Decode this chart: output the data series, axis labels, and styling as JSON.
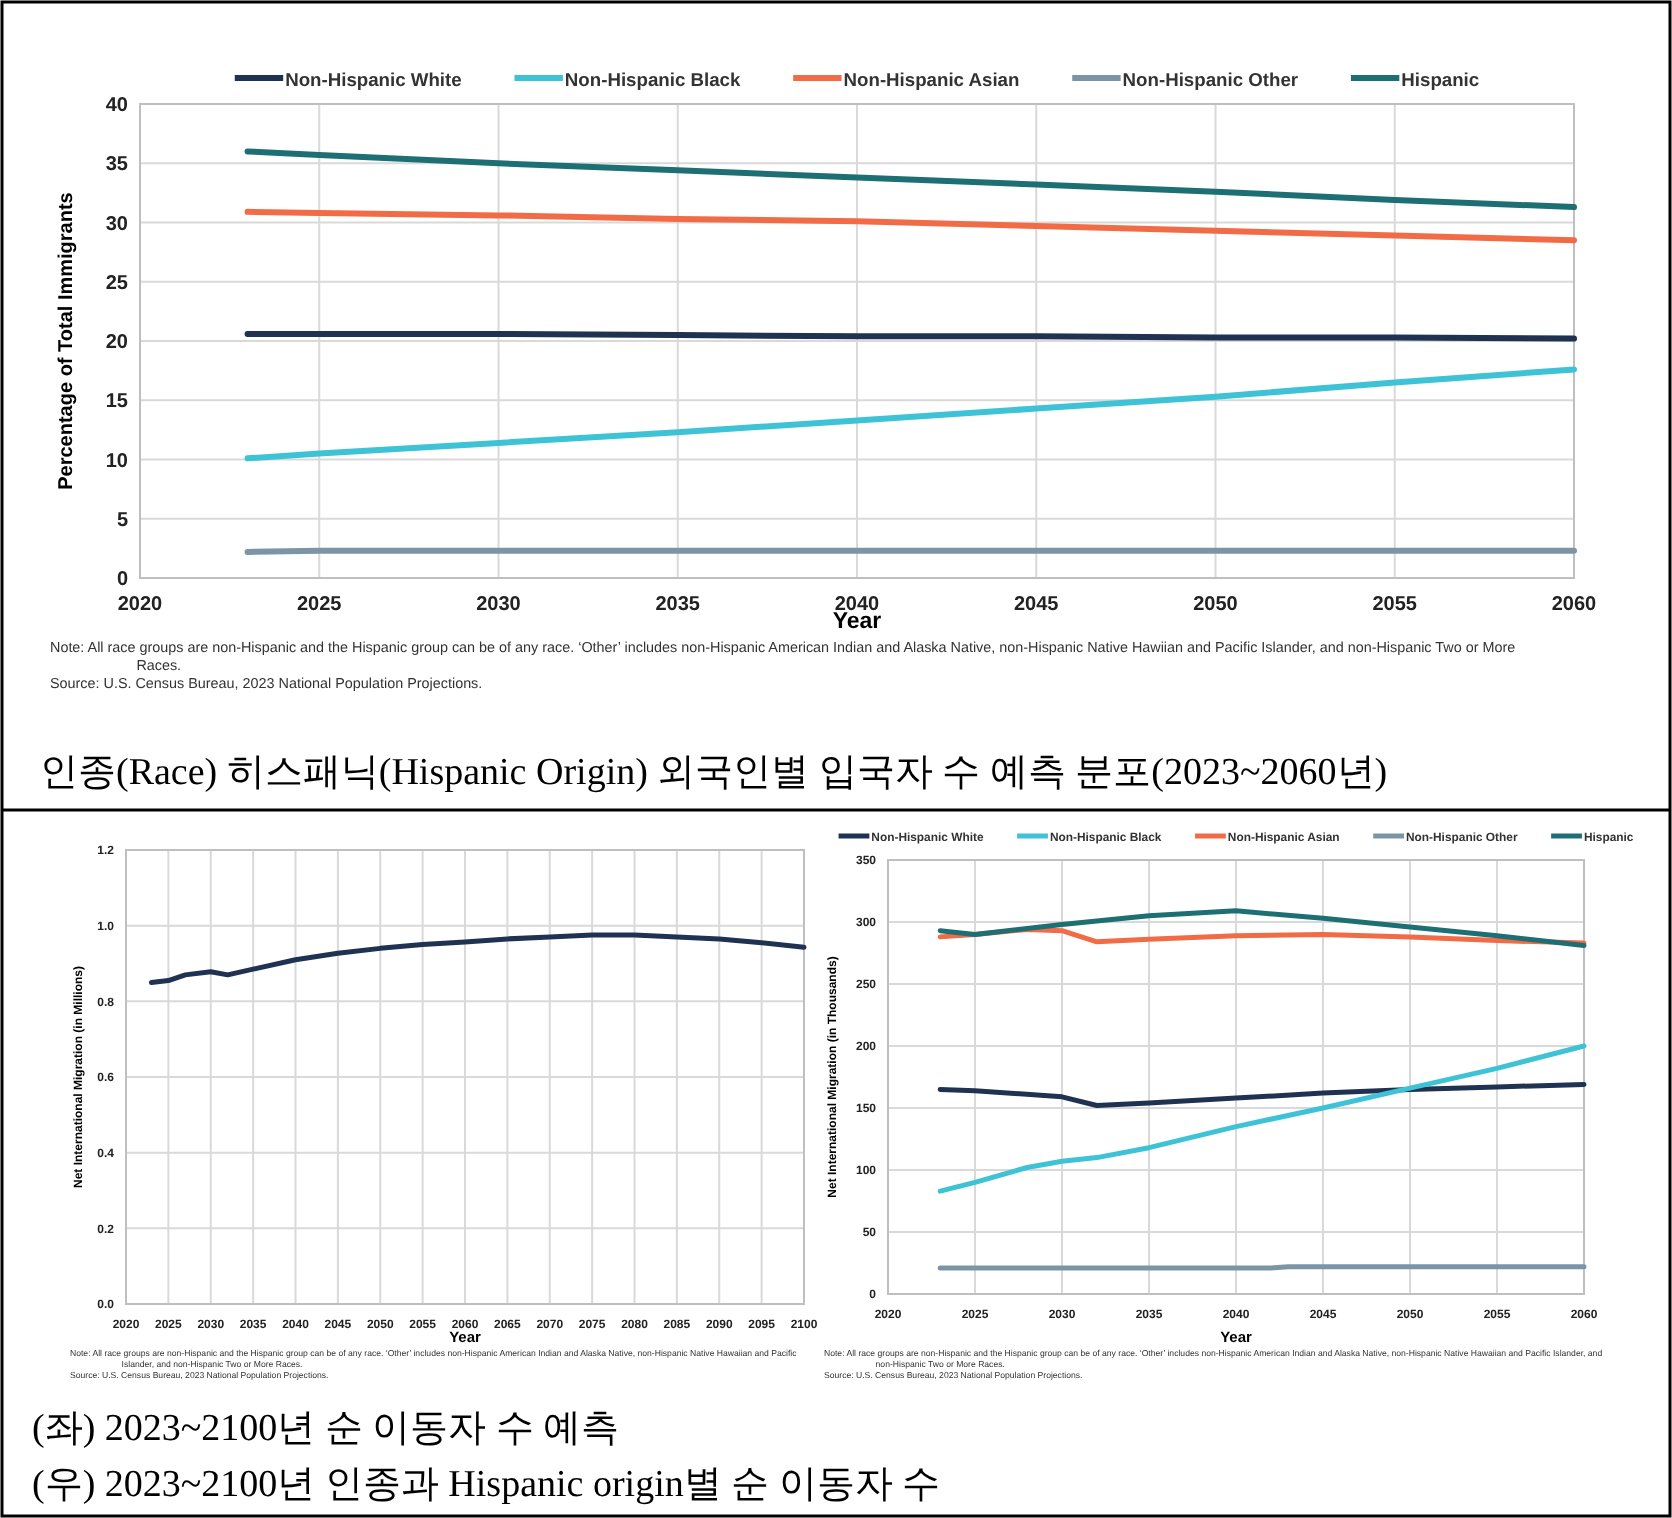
{
  "chart_data": [
    {
      "type": "line",
      "title": "인종(Race) 히스패닉(Hispanic Origin) 외국인별 입국자 수 예측 분포(2023~2060년)",
      "xlabel": "Year",
      "ylabel": "Percentage of Total Immigrants",
      "x": [
        2023,
        2025,
        2030,
        2035,
        2040,
        2045,
        2050,
        2055,
        2060
      ],
      "xlim": [
        2020,
        2060
      ],
      "xticks": [
        2020,
        2025,
        2030,
        2035,
        2040,
        2045,
        2050,
        2055,
        2060
      ],
      "ylim": [
        0,
        40
      ],
      "yticks": [
        0,
        5,
        10,
        15,
        20,
        25,
        30,
        35,
        40
      ],
      "grid": true,
      "legend": "top",
      "series": [
        {
          "name": "Non-Hispanic White",
          "color": "#1f3252",
          "values": [
            20.6,
            20.6,
            20.6,
            20.5,
            20.4,
            20.4,
            20.3,
            20.3,
            20.2
          ]
        },
        {
          "name": "Non-Hispanic Black",
          "color": "#3ec3d6",
          "values": [
            10.1,
            10.5,
            11.4,
            12.3,
            13.3,
            14.3,
            15.3,
            16.5,
            17.6
          ]
        },
        {
          "name": "Non-Hispanic Asian",
          "color": "#f26b47",
          "values": [
            30.9,
            30.8,
            30.6,
            30.3,
            30.1,
            29.7,
            29.3,
            28.9,
            28.5
          ]
        },
        {
          "name": "Non-Hispanic Other",
          "color": "#7b95a6",
          "values": [
            2.2,
            2.3,
            2.3,
            2.3,
            2.3,
            2.3,
            2.3,
            2.3,
            2.3
          ]
        },
        {
          "name": "Hispanic",
          "color": "#1e6f73",
          "values": [
            36.0,
            35.7,
            35.0,
            34.4,
            33.8,
            33.2,
            32.6,
            31.9,
            31.3
          ]
        }
      ],
      "annotations": [
        "Note: All race groups are non-Hispanic and the Hispanic group can be of any race. ‘Other’ includes non-Hispanic American Indian and Alaska Native, non-Hispanic Native Hawiian and Pacific Islander, and non-Hispanic Two or More Races.",
        "Source: U.S. Census Bureau, 2023 National Population Projections."
      ]
    },
    {
      "type": "line",
      "xlabel": "Year",
      "ylabel": "Net International Migration (in Millions)",
      "x": [
        2023,
        2025,
        2027,
        2030,
        2032,
        2035,
        2040,
        2045,
        2050,
        2055,
        2060,
        2065,
        2070,
        2075,
        2080,
        2085,
        2090,
        2095,
        2100
      ],
      "xlim": [
        2020,
        2100
      ],
      "xticks": [
        2020,
        2025,
        2030,
        2035,
        2040,
        2045,
        2050,
        2055,
        2060,
        2065,
        2070,
        2075,
        2080,
        2085,
        2090,
        2095,
        2100
      ],
      "ylim": [
        0,
        1.2
      ],
      "yticks": [
        {
          "value": 0,
          "label": "0.0"
        },
        0.2,
        0.4,
        0.6,
        0.8,
        {
          "value": 1,
          "label": "1.0"
        },
        1.2
      ],
      "grid": true,
      "series": [
        {
          "color": "#1f3252",
          "values": [
            0.85,
            0.855,
            0.87,
            0.878,
            0.87,
            0.885,
            0.91,
            0.927,
            0.94,
            0.95,
            0.957,
            0.965,
            0.97,
            0.975,
            0.975,
            0.97,
            0.965,
            0.955,
            0.943
          ]
        }
      ],
      "annotations": [
        "Note: All race groups are non-Hispanic and the Hispanic group can be of any race. ‘Other’ includes non-Hispanic American Indian and Alaska Native, non-Hispanic Native Hawaiian and Pacific Islander, and non-Hispanic Two or More Races.",
        "Source: U.S. Census Bureau, 2023 National Population Projections."
      ]
    },
    {
      "type": "line",
      "xlabel": "Year",
      "ylabel": "Net International Migration (in Thousands)",
      "xlim": [
        2020,
        2060
      ],
      "xticks": [
        2020,
        2025,
        2030,
        2035,
        2040,
        2045,
        2050,
        2055,
        2060
      ],
      "ylim": [
        0,
        350
      ],
      "yticks": [
        0,
        50,
        100,
        150,
        200,
        250,
        300,
        350
      ],
      "grid": true,
      "legend": "top",
      "series": [
        {
          "name": "Non-Hispanic White",
          "color": "#1f3252",
          "x": [
            2023,
            2025,
            2030,
            2032,
            2035,
            2040,
            2045,
            2050,
            2055,
            2060
          ],
          "values": [
            165,
            164,
            159,
            152,
            154,
            158,
            162,
            165,
            167,
            169
          ]
        },
        {
          "name": "Non-Hispanic Black",
          "color": "#3ec3d6",
          "x": [
            2023,
            2025,
            2028,
            2030,
            2032,
            2035,
            2040,
            2045,
            2050,
            2055,
            2060
          ],
          "values": [
            83,
            90,
            102,
            107,
            110,
            118,
            135,
            150,
            166,
            182,
            200
          ]
        },
        {
          "name": "Non-Hispanic Asian",
          "color": "#f26b47",
          "x": [
            2023,
            2025,
            2028,
            2030,
            2032,
            2035,
            2040,
            2045,
            2050,
            2055,
            2060
          ],
          "values": [
            288,
            290,
            294,
            293,
            284,
            286,
            289,
            290,
            288,
            285,
            283
          ]
        },
        {
          "name": "Non-Hispanic Other",
          "color": "#7b95a6",
          "x": [
            2023,
            2042,
            2043,
            2060
          ],
          "values": [
            21,
            21,
            22,
            22
          ]
        },
        {
          "name": "Hispanic",
          "color": "#1e6f73",
          "x": [
            2023,
            2025,
            2030,
            2035,
            2040,
            2045,
            2050,
            2055,
            2060
          ],
          "values": [
            293,
            290,
            298,
            305,
            309,
            303,
            296,
            289,
            281
          ]
        }
      ],
      "annotations": [
        "Note: All race groups are non-Hispanic and the Hispanic group can be of any race. ‘Other’ includes non-Hispanic American Indian and Alaska Native, non-Hispanic Native Hawaiian and Pacific Islander, and non-Hispanic Two or More Races.",
        "Source: U.S. Census Bureau, 2023 National Population Projections."
      ]
    },
    {
      "type": "other",
      "annotations": [
        "(좌) 2023~2100년 순 이동자 수 예측",
        "(우) 2023~2100년 인종과 Hispanic origin별 순 이동자 수"
      ]
    }
  ]
}
